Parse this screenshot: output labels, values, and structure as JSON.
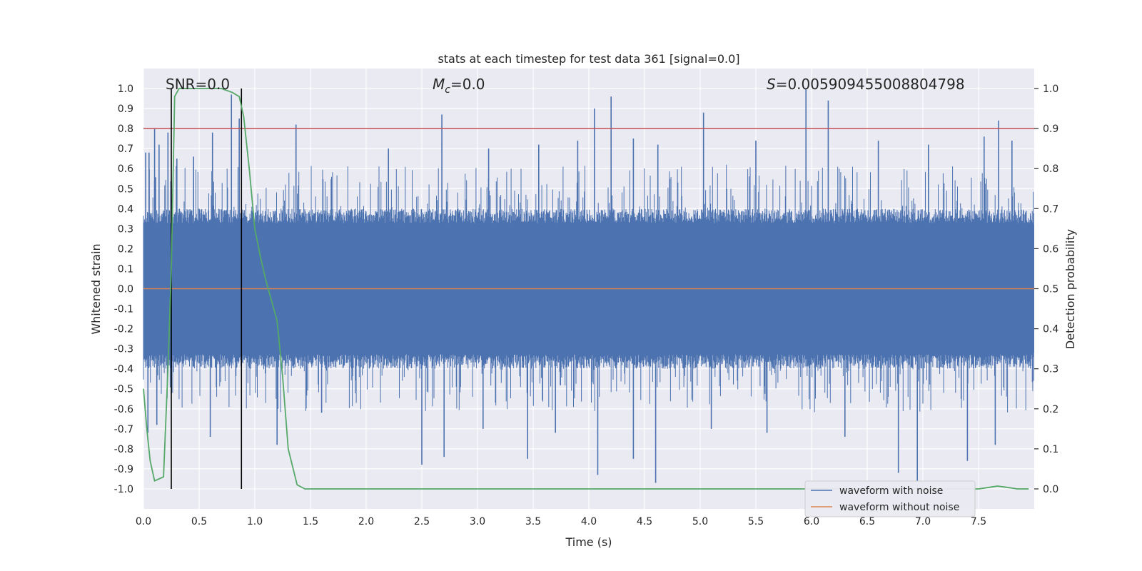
{
  "chart_data": {
    "type": "line",
    "title": "stats at each timestep for test data 361 [signal=0.0]",
    "xlabel": "Time (s)",
    "ylabel_left": "Whitened strain",
    "ylabel_right": "Detection probability",
    "xlim": [
      0.0,
      8.0
    ],
    "ylim_left": [
      -1.1,
      1.1
    ],
    "ylim_right": [
      -0.05,
      1.05
    ],
    "x_ticks": [
      0.0,
      0.5,
      1.0,
      1.5,
      2.0,
      2.5,
      3.0,
      3.5,
      4.0,
      4.5,
      5.0,
      5.5,
      6.0,
      6.5,
      7.0,
      7.5
    ],
    "x_tick_labels": [
      "0.0",
      "0.5",
      "1.0",
      "1.5",
      "2.0",
      "2.5",
      "3.0",
      "3.5",
      "4.0",
      "4.5",
      "5.0",
      "5.5",
      "6.0",
      "6.5",
      "7.0",
      "7.5"
    ],
    "y_left_ticks": [
      1.0,
      0.9,
      0.8,
      0.7,
      0.6,
      0.5,
      0.4,
      0.3,
      0.2,
      0.1,
      0.0,
      -0.1,
      -0.2,
      -0.3,
      -0.4,
      -0.5,
      -0.6,
      -0.7,
      -0.8,
      -0.9,
      -1.0
    ],
    "y_left_tick_labels": [
      "1.0",
      "0.9",
      "0.8",
      "0.7",
      "0.6",
      "0.5",
      "0.4",
      "0.3",
      "0.2",
      "0.1",
      "0.0",
      "-0.1",
      "-0.2",
      "-0.3",
      "-0.4",
      "-0.5",
      "-0.6",
      "-0.7",
      "-0.8",
      "-0.9",
      "-1.0"
    ],
    "y_right_ticks": [
      1.0,
      0.9,
      0.8,
      0.7,
      0.6,
      0.5,
      0.4,
      0.3,
      0.2,
      0.1,
      0.0
    ],
    "y_right_tick_labels": [
      "1.0",
      "0.9",
      "0.8",
      "0.7",
      "0.6",
      "0.5",
      "0.4",
      "0.3",
      "0.2",
      "0.1",
      "0.0"
    ],
    "annotations": {
      "snr": "SNR=0.0",
      "mc_symbol": "M",
      "mc_sub": "c",
      "mc_value": "=0.0",
      "s_symbol": "S",
      "s_value": "=0.005909455008804798"
    },
    "threshold": {
      "value": 0.9,
      "axis": "right",
      "color": "#c44e52"
    },
    "vertical_lines": [
      0.25,
      0.88
    ],
    "waveform_with_noise": {
      "name": "waveform with noise",
      "color": "#4c72b0",
      "sample_rate_hz": 2048,
      "dense_band": [
        -0.4,
        0.4
      ],
      "spikes_positive": [
        [
          0.02,
          0.68
        ],
        [
          0.05,
          0.68
        ],
        [
          0.1,
          0.8
        ],
        [
          0.14,
          0.72
        ],
        [
          0.22,
          0.78
        ],
        [
          0.3,
          0.65
        ],
        [
          0.45,
          0.66
        ],
        [
          0.62,
          0.78
        ],
        [
          0.79,
          0.97
        ],
        [
          0.86,
          0.85
        ],
        [
          1.37,
          0.82
        ],
        [
          2.2,
          0.7
        ],
        [
          2.68,
          0.87
        ],
        [
          3.1,
          0.7
        ],
        [
          3.55,
          0.72
        ],
        [
          3.9,
          0.74
        ],
        [
          4.05,
          0.9
        ],
        [
          4.2,
          0.96
        ],
        [
          4.4,
          0.75
        ],
        [
          4.62,
          0.72
        ],
        [
          5.03,
          0.88
        ],
        [
          5.5,
          0.74
        ],
        [
          5.95,
          1.0
        ],
        [
          6.15,
          0.94
        ],
        [
          6.6,
          0.74
        ],
        [
          7.05,
          0.72
        ],
        [
          7.55,
          0.76
        ],
        [
          7.68,
          0.84
        ],
        [
          7.8,
          0.74
        ]
      ],
      "spikes_negative": [
        [
          0.04,
          -0.72
        ],
        [
          0.12,
          -0.68
        ],
        [
          0.6,
          -0.74
        ],
        [
          1.2,
          -0.78
        ],
        [
          1.6,
          -0.62
        ],
        [
          2.5,
          -0.88
        ],
        [
          2.7,
          -0.84
        ],
        [
          3.05,
          -0.7
        ],
        [
          3.45,
          -0.85
        ],
        [
          3.7,
          -0.72
        ],
        [
          4.08,
          -0.93
        ],
        [
          4.4,
          -0.85
        ],
        [
          4.6,
          -0.97
        ],
        [
          5.1,
          -0.7
        ],
        [
          5.6,
          -0.72
        ],
        [
          6.3,
          -0.74
        ],
        [
          6.78,
          -0.92
        ],
        [
          6.95,
          -0.96
        ],
        [
          7.4,
          -0.86
        ],
        [
          7.65,
          -0.78
        ]
      ]
    },
    "waveform_without_noise": {
      "name": "waveform without noise",
      "color": "#dd8452",
      "x": [
        0.0,
        8.0
      ],
      "y": [
        0.0,
        0.0
      ]
    },
    "detection_probability": {
      "color": "#55a868",
      "x": [
        0.0,
        0.03,
        0.06,
        0.1,
        0.18,
        0.22,
        0.25,
        0.28,
        0.32,
        0.38,
        0.45,
        0.55,
        0.7,
        0.8,
        0.86,
        0.9,
        0.95,
        1.0,
        1.05,
        1.1,
        1.15,
        1.2,
        1.25,
        1.3,
        1.38,
        1.45,
        1.6,
        2.0,
        3.0,
        4.0,
        5.0,
        6.0,
        7.0,
        7.5,
        7.6,
        7.67,
        7.75,
        7.85,
        7.95
      ],
      "y": [
        0.25,
        0.15,
        0.07,
        0.02,
        0.03,
        0.3,
        0.55,
        0.98,
        1.0,
        1.0,
        1.0,
        1.0,
        1.0,
        0.99,
        0.98,
        0.93,
        0.8,
        0.65,
        0.58,
        0.52,
        0.47,
        0.42,
        0.28,
        0.1,
        0.01,
        0.0,
        0.0,
        0.0,
        0.0,
        0.0,
        0.0,
        0.0,
        0.0,
        0.0,
        0.004,
        0.007,
        0.004,
        0.0,
        0.0
      ]
    },
    "legend": {
      "position": "lower-right",
      "entries": [
        "waveform with noise",
        "waveform without noise"
      ]
    },
    "colors": {
      "axes_background": "#eaeaf2",
      "grid": "#ffffff",
      "text": "#262626"
    }
  }
}
